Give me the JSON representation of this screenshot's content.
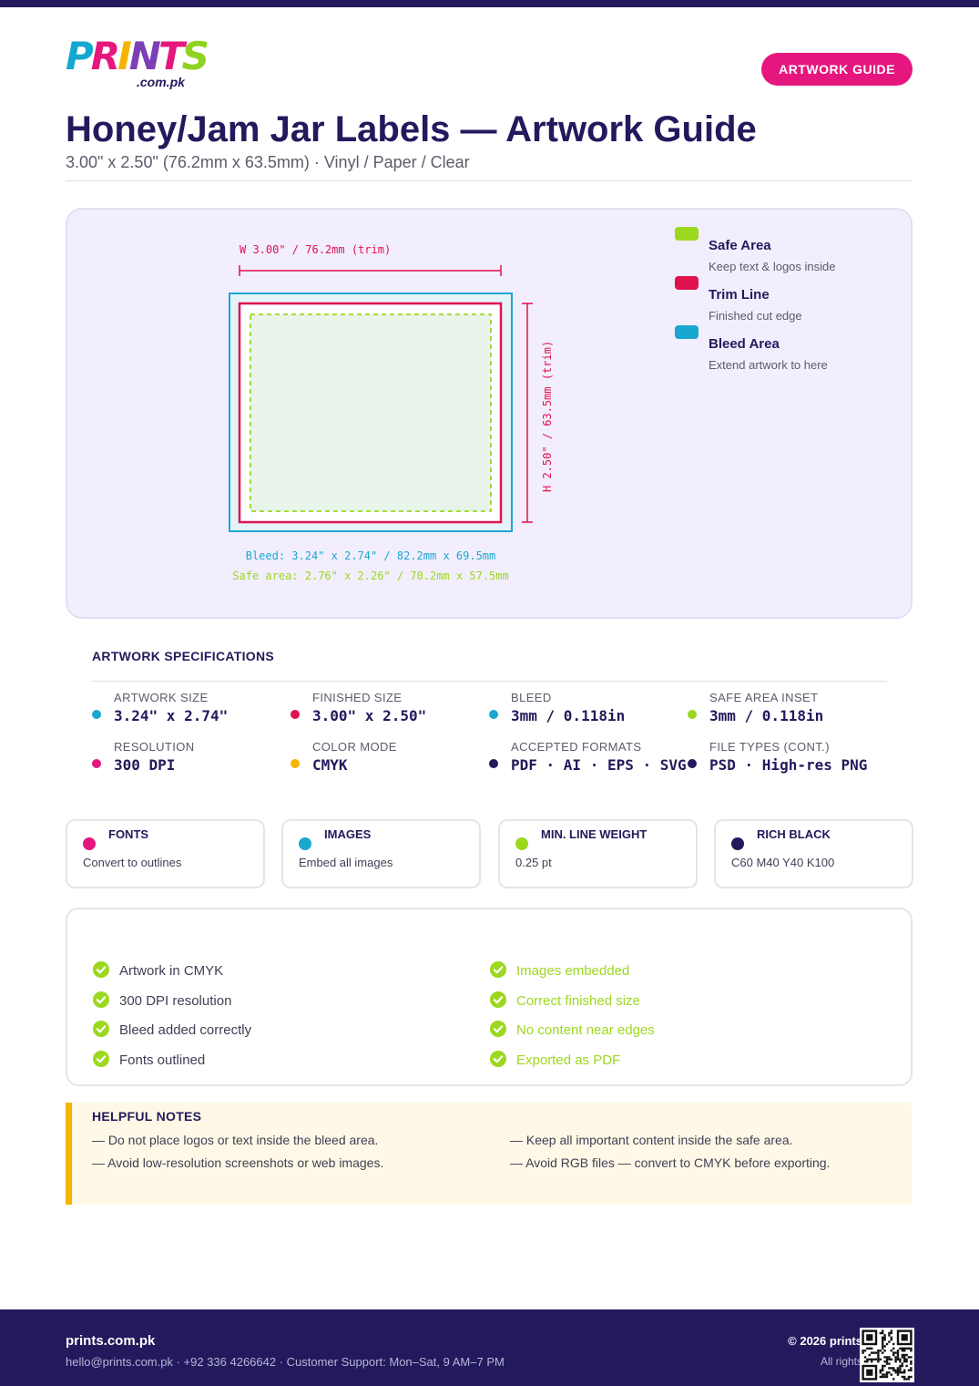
{
  "header": {
    "logo_text": "PRINTS",
    "logo_sub": ".com.pk",
    "guide_badge": "ARTWORK GUIDE",
    "title": "Honey/Jam Jar Labels — Artwork Guide",
    "subtitle": "3.00\" x 2.50\" (76.2mm x 63.5mm) · Vinyl / Paper / Clear"
  },
  "diagram": {
    "width_label": "W 3.00\" / 76.2mm (trim)",
    "height_label": "H 2.50\" / 63.5mm (trim)",
    "bleed_caption": "Bleed: 3.24\" x 2.74\" / 82.2mm x 69.5mm",
    "safe_caption": "Safe area: 2.76\" x 2.26\" / 70.2mm x 57.5mm",
    "colors": {
      "bleed": "#1aa7cf",
      "trim": "#e0114f",
      "safe": "#9cd81f",
      "safe_fill": "#e8f4ea",
      "bleed_fill": "#e3f3f8"
    }
  },
  "legend": [
    {
      "label": "Safe Area",
      "desc": "Keep text & logos inside",
      "color": "#9cd81f"
    },
    {
      "label": "Trim Line",
      "desc": "Finished cut edge",
      "color": "#e0114f"
    },
    {
      "label": "Bleed Area",
      "desc": "Extend artwork to here",
      "color": "#1aa7cf"
    }
  ],
  "specs": {
    "title": "ARTWORK SPECIFICATIONS",
    "items": [
      {
        "label": "ARTWORK SIZE",
        "value": "3.24\" x 2.74\"",
        "color": "#1aa7cf"
      },
      {
        "label": "FINISHED SIZE",
        "value": "3.00\" x 2.50\"",
        "color": "#e0114f"
      },
      {
        "label": "BLEED",
        "value": "3mm / 0.118in",
        "color": "#1aa7cf"
      },
      {
        "label": "SAFE AREA INSET",
        "value": "3mm / 0.118in",
        "color": "#9cd81f"
      },
      {
        "label": "RESOLUTION",
        "value": "300 DPI",
        "color": "#e5177f"
      },
      {
        "label": "COLOR MODE",
        "value": "CMYK",
        "color": "#f5b400"
      },
      {
        "label": "ACCEPTED FORMATS",
        "value": "PDF · AI · EPS · SVG",
        "color": "#221a5c"
      },
      {
        "label": "FILE TYPES (CONT.)",
        "value": "PSD · High-res PNG",
        "color": "#221a5c"
      }
    ]
  },
  "info_cards": [
    {
      "title": "FONTS",
      "text": "Convert to outlines",
      "color": "#e5177f"
    },
    {
      "title": "IMAGES",
      "text": "Embed all images",
      "color": "#1aa7cf"
    },
    {
      "title": "MIN. LINE WEIGHT",
      "text": "0.25 pt",
      "color": "#9cd81f"
    },
    {
      "title": "RICH BLACK",
      "text": "C60 M40 Y40 K100",
      "color": "#221a5c"
    }
  ],
  "checklist": {
    "left": [
      "Artwork in CMYK",
      "300 DPI resolution",
      "Bleed added correctly",
      "Fonts outlined"
    ],
    "right": [
      "Images embedded",
      "Correct finished size",
      "No content near edges",
      "Exported as PDF"
    ],
    "check_color": "#9cd81f"
  },
  "notes": {
    "title": "HELPFUL NOTES",
    "left": [
      "— Do not place logos or text inside the bleed area.",
      "— Avoid low-resolution screenshots or web images."
    ],
    "right": [
      "— Keep all important content inside the safe area.",
      "— Avoid RGB files — convert to CMYK before exporting."
    ]
  },
  "footer": {
    "brand": "prints.com.pk",
    "contact": "hello@prints.com.pk · +92 336 4266642 · Customer Support: Mon–Sat, 9 AM–7 PM",
    "copyright": "© 2026 prints",
    "rights": "All rights",
    "qr_icon": "qr-code-icon"
  }
}
